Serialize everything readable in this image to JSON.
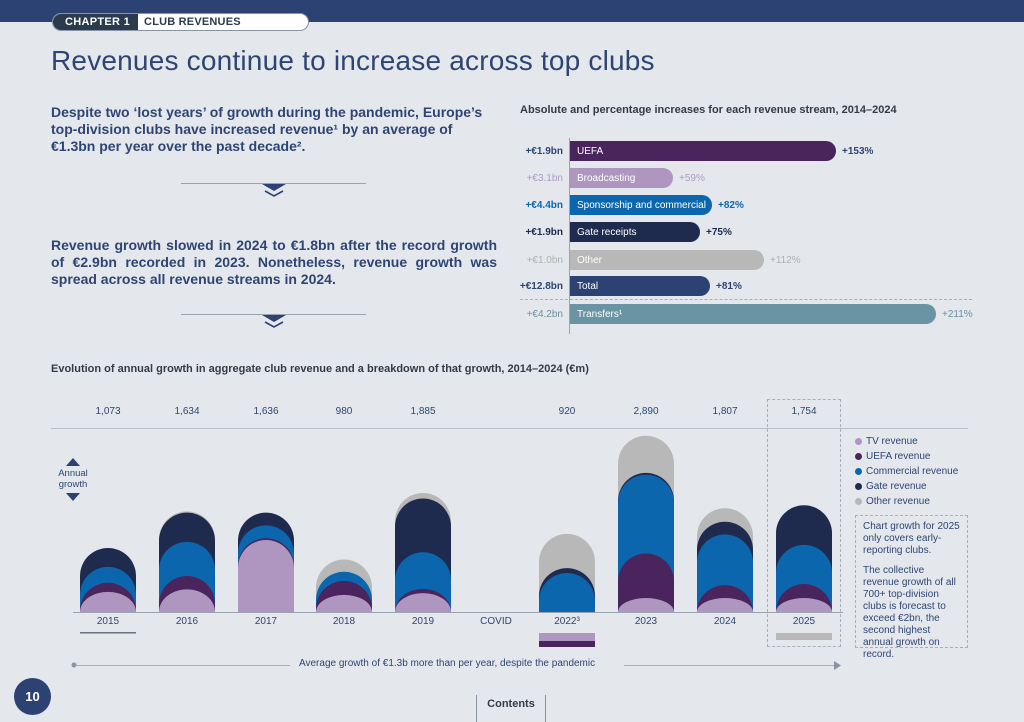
{
  "header": {
    "chapter_label": "CHAPTER 1",
    "chapter_name": "CLUB REVENUES"
  },
  "page_title": "Revenues continue to increase across top clubs",
  "lead_1": "Despite two ‘lost years’ of growth during the pandemic, Europe’s top-division clubs have increased revenue¹ by an average of €1.3bn per year over the past decade².",
  "lead_2": "Revenue growth slowed in 2024 to €1.8bn after the record growth of €2.9bn recorded in 2023. Nonetheless, revenue growth was spread across all revenue streams in 2024.",
  "colors": {
    "tv": "#ae96c1",
    "uefa": "#4a245c",
    "commercial": "#0b66ae",
    "gate": "#1f2a4f",
    "other": "#b8b8b8",
    "total": "#2c4272",
    "transfers": "#6a93a3",
    "bg": "#e4e8ec"
  },
  "chart_data": [
    {
      "type": "bar",
      "orientation": "horizontal",
      "title": "Absolute and percentage increases for each revenue stream, 2014–2024",
      "categories": [
        "UEFA",
        "Broadcasting",
        "Sponsorship and commercial",
        "Gate receipts",
        "Other",
        "Total",
        "Transfers¹"
      ],
      "absolute_labels": [
        "+€1.9bn",
        "+€3.1bn",
        "+€4.4bn",
        "+€1.9bn",
        "+€1.0bn",
        "+€12.8bn",
        "+€4.2bn"
      ],
      "absolute_bn": [
        1.9,
        3.1,
        4.4,
        1.9,
        1.0,
        12.8,
        4.2
      ],
      "pct_labels": [
        "+153%",
        "+59%",
        "+82%",
        "+75%",
        "+112%",
        "+81%",
        "+211%"
      ],
      "values": [
        153,
        59,
        82,
        75,
        112,
        81,
        211
      ],
      "bar_colors": [
        "#4a245c",
        "#ae96c1",
        "#0b66ae",
        "#1f2a4f",
        "#b8b8b8",
        "#2c4272",
        "#6a93a3"
      ],
      "label_colors": [
        "#2e4573",
        "#ae9bc3",
        "#0b66ae",
        "#1f2a4f",
        "#b0b0b0",
        "#2e4573",
        "#6a8fa0"
      ],
      "xlim": [
        0,
        211
      ]
    },
    {
      "type": "bar",
      "stacked": true,
      "title": "Evolution of annual growth in aggregate club revenue and a breakdown of that growth, 2014–2024 (€m)",
      "categories": [
        "2015",
        "2016",
        "2017",
        "2018",
        "2019",
        "COVID",
        "2022³",
        "2023",
        "2024",
        "2025"
      ],
      "totals": [
        "1,073",
        "1,634",
        "1,636",
        "980",
        "1,885",
        "",
        "920",
        "2,890",
        "1,807",
        "1,754"
      ],
      "totals_num": [
        1073,
        1634,
        1636,
        980,
        1885,
        null,
        920,
        2890,
        1807,
        1754
      ],
      "series": [
        {
          "name": "TV revenue",
          "key": "tv",
          "values": [
            330,
            370,
            1180,
            280,
            310,
            null,
            -310,
            190,
            190,
            160
          ]
        },
        {
          "name": "UEFA revenue",
          "key": "uefa",
          "values": [
            150,
            220,
            30,
            230,
            70,
            null,
            -90,
            770,
            250,
            300
          ]
        },
        {
          "name": "Commercial revenue",
          "key": "commercial",
          "values": [
            260,
            560,
            210,
            150,
            600,
            null,
            640,
            1290,
            830,
            640
          ]
        },
        {
          "name": "Gate revenue",
          "key": "gate",
          "values": [
            310,
            480,
            210,
            0,
            880,
            null,
            80,
            30,
            210,
            650
          ]
        },
        {
          "name": "Other revenue",
          "key": "other",
          "values": [
            0,
            20,
            0,
            200,
            90,
            null,
            560,
            610,
            220,
            0
          ]
        }
      ],
      "negative_2025_other_indicator": true,
      "y_axis_label": "Annual growth",
      "legend": "right",
      "forecast_category": "2025",
      "note_1": "Chart growth for 2025 only covers early-reporting clubs.",
      "note_2": "The collective revenue growth of all 700+ top-division clubs is forecast to exceed €2bn, the second highest annual growth on record.",
      "footer_annotation": "Average growth of €1.3b more than per year, despite the pandemic"
    }
  ],
  "footer": {
    "page_number": "10",
    "contents_label": "Contents"
  }
}
